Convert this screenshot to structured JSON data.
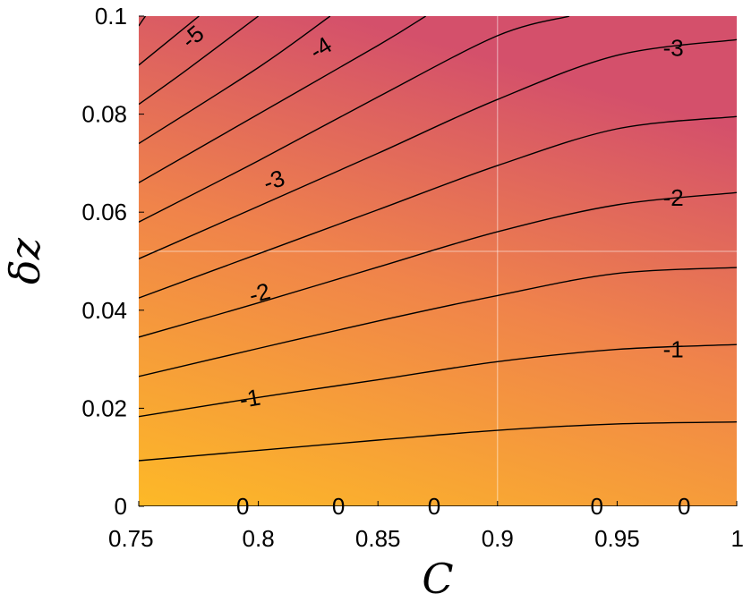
{
  "chart_data": {
    "type": "contour",
    "title": "",
    "xlabel": "C",
    "ylabel": "δz",
    "xlim": [
      0.75,
      1.0
    ],
    "ylim": [
      0,
      0.1
    ],
    "xticks": [
      0.75,
      0.8,
      0.85,
      0.9,
      0.95,
      1.0
    ],
    "xtick_labels": [
      "0.75",
      "0.8",
      "0.85",
      "0.9",
      "0.95",
      "1"
    ],
    "yticks": [
      0,
      0.02,
      0.04,
      0.06,
      0.08,
      0.1
    ],
    "ytick_labels": [
      "0",
      "0.02",
      "0.04",
      "0.06",
      "0.08",
      "0.1"
    ],
    "grid": true,
    "colormap": {
      "low": "#fdb927",
      "high": "#d4506b"
    },
    "contour_levels": [
      {
        "level": 0,
        "points": [
          [
            0.75,
            0.0
          ],
          [
            1.0,
            0.0
          ]
        ]
      },
      {
        "level": -0.5,
        "points": [
          [
            0.75,
            0.0093
          ],
          [
            0.85,
            0.0135
          ],
          [
            0.9,
            0.0155
          ],
          [
            0.95,
            0.0168
          ],
          [
            1.0,
            0.0172
          ]
        ]
      },
      {
        "level": -1.0,
        "points": [
          [
            0.75,
            0.0183
          ],
          [
            0.8,
            0.0222
          ],
          [
            0.85,
            0.0258
          ],
          [
            0.9,
            0.0295
          ],
          [
            0.95,
            0.032
          ],
          [
            1.0,
            0.033
          ]
        ]
      },
      {
        "level": -1.5,
        "points": [
          [
            0.75,
            0.0265
          ],
          [
            0.8,
            0.0322
          ],
          [
            0.85,
            0.0378
          ],
          [
            0.9,
            0.043
          ],
          [
            0.95,
            0.0475
          ],
          [
            1.0,
            0.0487
          ]
        ]
      },
      {
        "level": -2.0,
        "points": [
          [
            0.75,
            0.0345
          ],
          [
            0.8,
            0.0415
          ],
          [
            0.85,
            0.0488
          ],
          [
            0.9,
            0.056
          ],
          [
            0.95,
            0.0615
          ],
          [
            1.0,
            0.064
          ]
        ]
      },
      {
        "level": -2.5,
        "points": [
          [
            0.75,
            0.0425
          ],
          [
            0.8,
            0.0515
          ],
          [
            0.85,
            0.0605
          ],
          [
            0.9,
            0.0695
          ],
          [
            0.95,
            0.077
          ],
          [
            1.0,
            0.0795
          ]
        ]
      },
      {
        "level": -3.0,
        "points": [
          [
            0.75,
            0.0505
          ],
          [
            0.8,
            0.0612
          ],
          [
            0.85,
            0.072
          ],
          [
            0.9,
            0.083
          ],
          [
            0.95,
            0.092
          ],
          [
            1.0,
            0.0952
          ]
        ]
      },
      {
        "level": -3.5,
        "points": [
          [
            0.75,
            0.058
          ],
          [
            0.8,
            0.0705
          ],
          [
            0.85,
            0.0835
          ],
          [
            0.9,
            0.096
          ],
          [
            0.93,
            0.1
          ]
        ]
      },
      {
        "level": -4.0,
        "points": [
          [
            0.75,
            0.066
          ],
          [
            0.8,
            0.08
          ],
          [
            0.85,
            0.094
          ],
          [
            0.87,
            0.1
          ]
        ]
      },
      {
        "level": -4.5,
        "points": [
          [
            0.75,
            0.074
          ],
          [
            0.8,
            0.0895
          ],
          [
            0.83,
            0.1
          ]
        ]
      },
      {
        "level": -5.0,
        "points": [
          [
            0.75,
            0.082
          ],
          [
            0.77,
            0.089
          ],
          [
            0.8,
            0.1
          ]
        ]
      },
      {
        "level": -5.5,
        "points": [
          [
            0.75,
            0.09
          ],
          [
            0.7752,
            0.1
          ]
        ]
      },
      {
        "level": -6.0,
        "points": [
          [
            0.75,
            0.098
          ],
          [
            0.7528,
            0.1
          ]
        ]
      }
    ],
    "contour_labels": [
      {
        "text": "-5",
        "x": 0.7725,
        "y": 0.0958,
        "angle": -40
      },
      {
        "text": "-4",
        "x": 0.826,
        "y": 0.0935,
        "angle": -32
      },
      {
        "text": "-3",
        "x": 0.9735,
        "y": 0.0935,
        "angle": 0
      },
      {
        "text": "-3",
        "x": 0.8065,
        "y": 0.0665,
        "angle": -20
      },
      {
        "text": "-2",
        "x": 0.9735,
        "y": 0.063,
        "angle": 0
      },
      {
        "text": "-2",
        "x": 0.8005,
        "y": 0.0435,
        "angle": -15
      },
      {
        "text": "-1",
        "x": 0.9735,
        "y": 0.032,
        "angle": 0
      },
      {
        "text": "-1",
        "x": 0.7965,
        "y": 0.022,
        "angle": -10
      },
      {
        "text": "0",
        "x": 0.7935,
        "y": 0.0,
        "angle": 0
      },
      {
        "text": "0",
        "x": 0.8335,
        "y": 0.0,
        "angle": 0
      },
      {
        "text": "0",
        "x": 0.8735,
        "y": 0.0,
        "angle": 0
      },
      {
        "text": "0",
        "x": 0.9415,
        "y": 0.0,
        "angle": 0
      },
      {
        "text": "0",
        "x": 0.978,
        "y": 0.0,
        "angle": 0
      }
    ]
  }
}
